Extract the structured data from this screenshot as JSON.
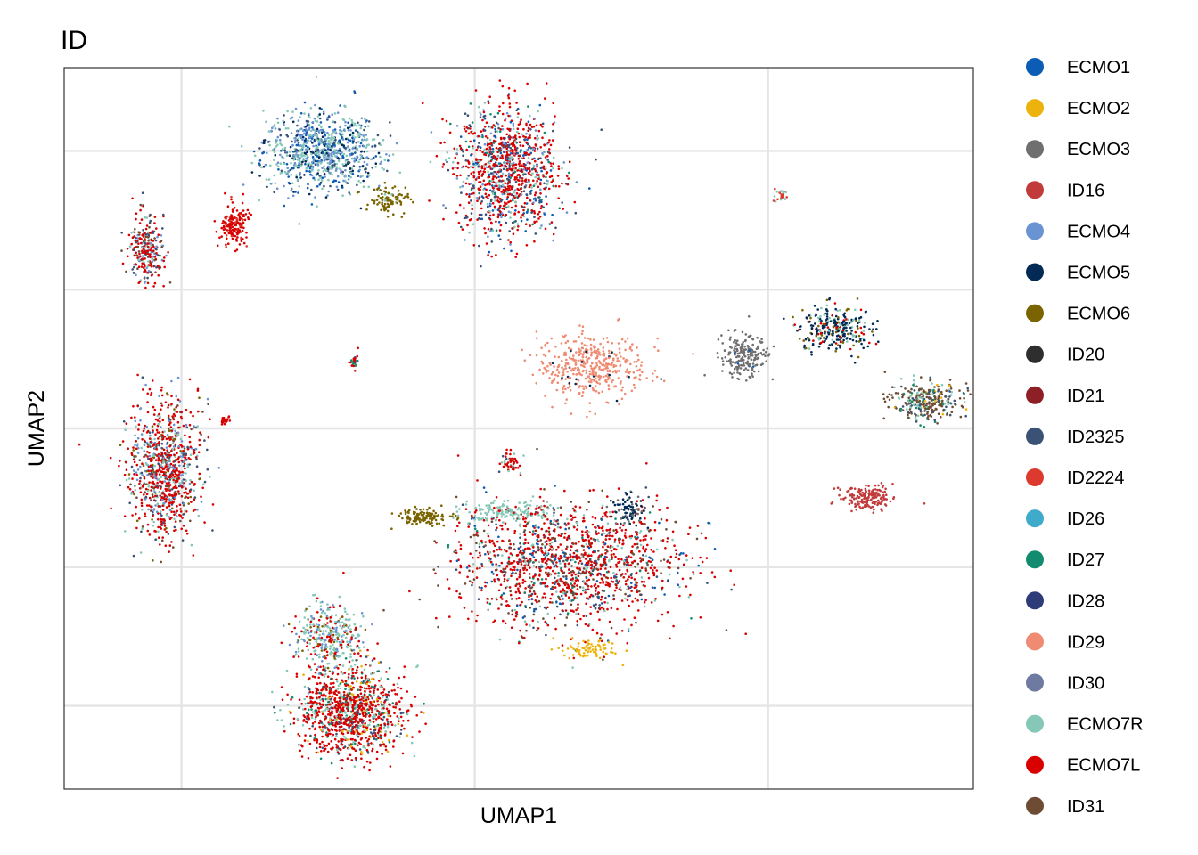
{
  "chart_data": {
    "type": "scatter",
    "title": "ID",
    "xlabel": "UMAP1",
    "ylabel": "UMAP2",
    "axis_ticks_shown": false,
    "grid": true,
    "xlim": [
      -8,
      23
    ],
    "ylim": [
      -13,
      13
    ],
    "x_gridlines": [
      -4,
      6,
      16
    ],
    "y_gridlines": [
      10,
      5,
      0,
      -5,
      -10
    ],
    "legend_position": "right",
    "legend": [
      {
        "name": "ECMO1",
        "color": "#0B5CB5"
      },
      {
        "name": "ECMO2",
        "color": "#EBB30C"
      },
      {
        "name": "ECMO3",
        "color": "#6F6F6F"
      },
      {
        "name": "ID16",
        "color": "#C23B3B"
      },
      {
        "name": "ECMO4",
        "color": "#6A93D3"
      },
      {
        "name": "ECMO5",
        "color": "#022A55"
      },
      {
        "name": "ECMO6",
        "color": "#7A6400"
      },
      {
        "name": "ID20",
        "color": "#2E2E2E"
      },
      {
        "name": "ID21",
        "color": "#8E1F24"
      },
      {
        "name": "ID2325",
        "color": "#3B5277"
      },
      {
        "name": "ID2224",
        "color": "#DC3A2E"
      },
      {
        "name": "ID26",
        "color": "#40AACB"
      },
      {
        "name": "ID27",
        "color": "#128B6E"
      },
      {
        "name": "ID28",
        "color": "#2D3B78"
      },
      {
        "name": "ID29",
        "color": "#EE8B72"
      },
      {
        "name": "ID30",
        "color": "#6E7AA2"
      },
      {
        "name": "ECMO7R",
        "color": "#86C8B8"
      },
      {
        "name": "ECMO7L",
        "color": "#D90000"
      },
      {
        "name": "ID31",
        "color": "#6D4C33"
      }
    ],
    "clusters": [
      {
        "label": "top-left-blue-teal",
        "cx": 0.8,
        "cy": 10.0,
        "rx": 1.9,
        "ry": 1.4,
        "n": 900,
        "mix": {
          "ECMO4": 0.3,
          "ECMO7R": 0.35,
          "ECMO1": 0.15,
          "ID2325": 0.1,
          "ECMO5": 0.1
        }
      },
      {
        "label": "top-left-red-blob",
        "cx": -2.2,
        "cy": 7.3,
        "rx": 0.5,
        "ry": 0.7,
        "n": 160,
        "mix": {
          "ECMO7L": 0.9,
          "ID2224": 0.1
        }
      },
      {
        "label": "top-olive-bridge",
        "cx": 3.1,
        "cy": 8.2,
        "rx": 0.7,
        "ry": 0.5,
        "n": 90,
        "mix": {
          "ECMO6": 0.95,
          "ECMO7R": 0.05
        }
      },
      {
        "label": "top-center-red",
        "cx": 7.1,
        "cy": 9.3,
        "rx": 1.7,
        "ry": 2.3,
        "n": 1100,
        "mix": {
          "ECMO7L": 0.5,
          "ID2325": 0.15,
          "ECMO7R": 0.12,
          "ECMO4": 0.08,
          "ID27": 0.05,
          "ECMO1": 0.1
        }
      },
      {
        "label": "left-top-stem",
        "cx": -5.2,
        "cy": 6.5,
        "rx": 0.6,
        "ry": 1.2,
        "n": 260,
        "mix": {
          "ECMO7L": 0.45,
          "ID2325": 0.2,
          "ECMO4": 0.15,
          "ECMO7R": 0.1,
          "ID31": 0.1
        }
      },
      {
        "label": "left-bottom-cluster",
        "cx": -4.6,
        "cy": -1.5,
        "rx": 1.2,
        "ry": 2.4,
        "n": 900,
        "mix": {
          "ECMO7L": 0.5,
          "ECMO4": 0.15,
          "ECMO7R": 0.12,
          "ID2325": 0.1,
          "ID31": 0.08,
          "ECMO6": 0.05
        }
      },
      {
        "label": "small-red-dot",
        "cx": -2.5,
        "cy": 0.3,
        "rx": 0.15,
        "ry": 0.15,
        "n": 20,
        "mix": {
          "ECMO7L": 1.0
        }
      },
      {
        "label": "center-salmon-star",
        "cx": 10.0,
        "cy": 2.2,
        "rx": 1.8,
        "ry": 1.2,
        "n": 420,
        "mix": {
          "ID29": 0.95,
          "ECMO5": 0.05
        }
      },
      {
        "label": "tiny-center-cluster",
        "cx": 1.9,
        "cy": 2.4,
        "rx": 0.2,
        "ry": 0.3,
        "n": 25,
        "mix": {
          "ID27": 0.4,
          "ECMO7L": 0.4,
          "ECMO1": 0.2
        }
      },
      {
        "label": "right-gray-blob",
        "cx": 15.2,
        "cy": 2.6,
        "rx": 0.8,
        "ry": 0.8,
        "n": 200,
        "mix": {
          "ECMO3": 0.95,
          "ECMO1": 0.05
        }
      },
      {
        "label": "right-navy-blob",
        "cx": 18.3,
        "cy": 3.6,
        "rx": 1.2,
        "ry": 0.8,
        "n": 300,
        "mix": {
          "ECMO5": 0.6,
          "ECMO7R": 0.15,
          "ECMO6": 0.12,
          "ECMO7L": 0.13
        }
      },
      {
        "label": "right-small-teal",
        "cx": 16.4,
        "cy": 8.4,
        "rx": 0.3,
        "ry": 0.3,
        "n": 25,
        "mix": {
          "ECMO7R": 0.5,
          "ID2224": 0.5
        }
      },
      {
        "label": "far-right-brown",
        "cx": 21.4,
        "cy": 1.0,
        "rx": 1.2,
        "ry": 0.65,
        "n": 300,
        "mix": {
          "ID31": 0.55,
          "ECMO7R": 0.15,
          "ID2325": 0.15,
          "ID27": 0.1,
          "ECMO2": 0.05
        }
      },
      {
        "label": "far-right-red",
        "cx": 19.4,
        "cy": -2.5,
        "rx": 0.9,
        "ry": 0.45,
        "n": 180,
        "mix": {
          "ID16": 1.0
        }
      },
      {
        "label": "bottom-center-big",
        "cx": 9.2,
        "cy": -4.9,
        "rx": 3.8,
        "ry": 2.2,
        "n": 1500,
        "mix": {
          "ECMO7L": 0.55,
          "ID31": 0.15,
          "ID2325": 0.1,
          "ECMO7R": 0.08,
          "ID27": 0.05,
          "ECMO1": 0.07
        }
      },
      {
        "label": "bottom-olive-bar",
        "cx": 4.3,
        "cy": -3.2,
        "rx": 1.0,
        "ry": 0.3,
        "n": 120,
        "mix": {
          "ECMO6": 1.0
        }
      },
      {
        "label": "bottom-teal-strip",
        "cx": 7.0,
        "cy": -3.0,
        "rx": 1.5,
        "ry": 0.4,
        "n": 150,
        "mix": {
          "ECMO7R": 0.9,
          "ECMO7L": 0.1
        }
      },
      {
        "label": "bottom-dark-top-right",
        "cx": 11.2,
        "cy": -3.0,
        "rx": 0.6,
        "ry": 0.6,
        "n": 80,
        "mix": {
          "ECMO5": 0.7,
          "ECMO3": 0.3
        }
      },
      {
        "label": "bottom-yellow-edge",
        "cx": 9.9,
        "cy": -8.0,
        "rx": 0.9,
        "ry": 0.35,
        "n": 80,
        "mix": {
          "ECMO2": 1.0
        }
      },
      {
        "label": "bottom-left-cluster",
        "cx": 1.8,
        "cy": -10.2,
        "rx": 1.8,
        "ry": 1.6,
        "n": 1100,
        "mix": {
          "ECMO7L": 0.6,
          "ECMO7R": 0.15,
          "ID2325": 0.1,
          "ID27": 0.08,
          "ECMO2": 0.07
        }
      },
      {
        "label": "bottom-left-stem",
        "cx": 1.0,
        "cy": -7.5,
        "rx": 1.2,
        "ry": 1.2,
        "n": 350,
        "mix": {
          "ECMO7R": 0.5,
          "ECMO7L": 0.25,
          "ECMO4": 0.15,
          "ECMO6": 0.1
        }
      },
      {
        "label": "small-red-above-bottom",
        "cx": 7.2,
        "cy": -1.2,
        "rx": 0.4,
        "ry": 0.4,
        "n": 50,
        "mix": {
          "ECMO7L": 0.6,
          "ECMO7R": 0.3,
          "ID2325": 0.1
        }
      }
    ]
  }
}
